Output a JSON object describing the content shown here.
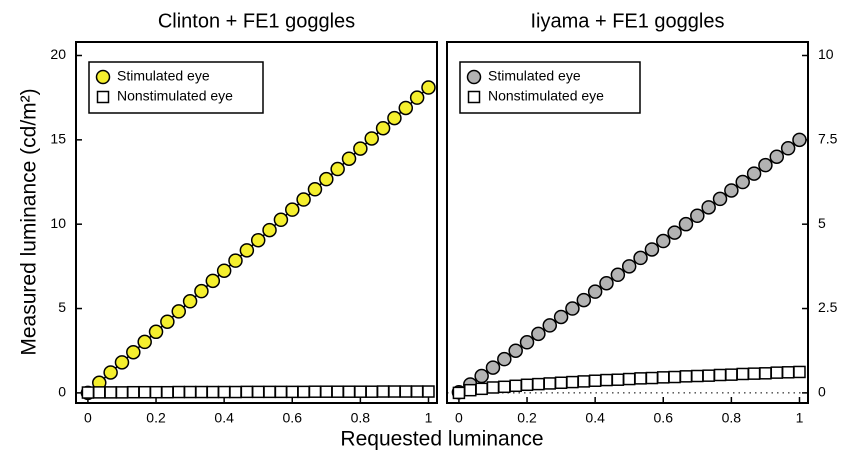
{
  "xlabel": "Requested luminance",
  "ylabel": "Measured luminance (cd/m²)",
  "chart_data": [
    {
      "type": "line",
      "title": "Clinton + FE1 goggles",
      "x": [
        0,
        0.0333,
        0.0667,
        0.1,
        0.1333,
        0.1667,
        0.2,
        0.2333,
        0.2667,
        0.3,
        0.3333,
        0.3667,
        0.4,
        0.4333,
        0.4667,
        0.5,
        0.5333,
        0.5667,
        0.6,
        0.6333,
        0.6667,
        0.7,
        0.7333,
        0.7667,
        0.8,
        0.8333,
        0.8667,
        0.9,
        0.9333,
        0.9667,
        1
      ],
      "series": [
        {
          "name": "Stimulated eye",
          "color": "#f5ef2e",
          "marker": "circle",
          "values": [
            0,
            0.6,
            1.21,
            1.81,
            2.41,
            3.02,
            3.62,
            4.22,
            4.83,
            5.43,
            6.03,
            6.64,
            7.24,
            7.84,
            8.45,
            9.05,
            9.65,
            10.26,
            10.86,
            11.46,
            12.07,
            12.67,
            13.27,
            13.88,
            14.48,
            15.08,
            15.69,
            16.29,
            16.89,
            17.5,
            18.1
          ]
        },
        {
          "name": "Nonstimulated eye",
          "color": "#ffffff",
          "marker": "square",
          "values": [
            0.02,
            0.03,
            0.03,
            0.03,
            0.04,
            0.04,
            0.04,
            0.04,
            0.05,
            0.05,
            0.05,
            0.05,
            0.05,
            0.05,
            0.06,
            0.06,
            0.06,
            0.06,
            0.06,
            0.06,
            0.07,
            0.07,
            0.07,
            0.07,
            0.07,
            0.07,
            0.08,
            0.08,
            0.08,
            0.08,
            0.08
          ]
        }
      ],
      "xlim": [
        -0.035,
        1.025
      ],
      "xticks": [
        0,
        0.2,
        0.4,
        0.6,
        0.8,
        1
      ],
      "ylim": [
        -0.6,
        20.8
      ],
      "yticks": [
        0,
        5,
        10,
        15,
        20
      ],
      "yaxis_side": "left",
      "legend": "upper left",
      "zero_line": false
    },
    {
      "type": "line",
      "title": "Iiyama + FE1 goggles",
      "x": [
        0,
        0.0333,
        0.0667,
        0.1,
        0.1333,
        0.1667,
        0.2,
        0.2333,
        0.2667,
        0.3,
        0.3333,
        0.3667,
        0.4,
        0.4333,
        0.4667,
        0.5,
        0.5333,
        0.5667,
        0.6,
        0.6333,
        0.6667,
        0.7,
        0.7333,
        0.7667,
        0.8,
        0.8333,
        0.8667,
        0.9,
        0.9333,
        0.9667,
        1
      ],
      "series": [
        {
          "name": "Stimulated eye",
          "color": "#b3b3b3",
          "marker": "circle",
          "values": [
            0.02,
            0.25,
            0.5,
            0.75,
            1,
            1.25,
            1.5,
            1.75,
            2,
            2.25,
            2.5,
            2.75,
            3,
            3.25,
            3.5,
            3.75,
            4,
            4.25,
            4.5,
            4.75,
            5,
            5.25,
            5.5,
            5.75,
            6,
            6.25,
            6.5,
            6.75,
            7,
            7.25,
            7.5
          ]
        },
        {
          "name": "Nonstimulated eye",
          "color": "#ffffff",
          "marker": "square",
          "values": [
            0,
            0.08,
            0.12,
            0.16,
            0.18,
            0.21,
            0.24,
            0.26,
            0.28,
            0.3,
            0.32,
            0.34,
            0.36,
            0.38,
            0.39,
            0.41,
            0.43,
            0.44,
            0.46,
            0.47,
            0.49,
            0.5,
            0.51,
            0.53,
            0.54,
            0.56,
            0.57,
            0.58,
            0.6,
            0.61,
            0.62
          ]
        }
      ],
      "xlim": [
        -0.035,
        1.025
      ],
      "xticks": [
        0,
        0.2,
        0.4,
        0.6,
        0.8,
        1
      ],
      "ylim": [
        -0.3,
        10.4
      ],
      "yticks": [
        0,
        2.5,
        5,
        7.5,
        10
      ],
      "yaxis_side": "right",
      "legend": "upper left",
      "zero_line": true
    }
  ]
}
